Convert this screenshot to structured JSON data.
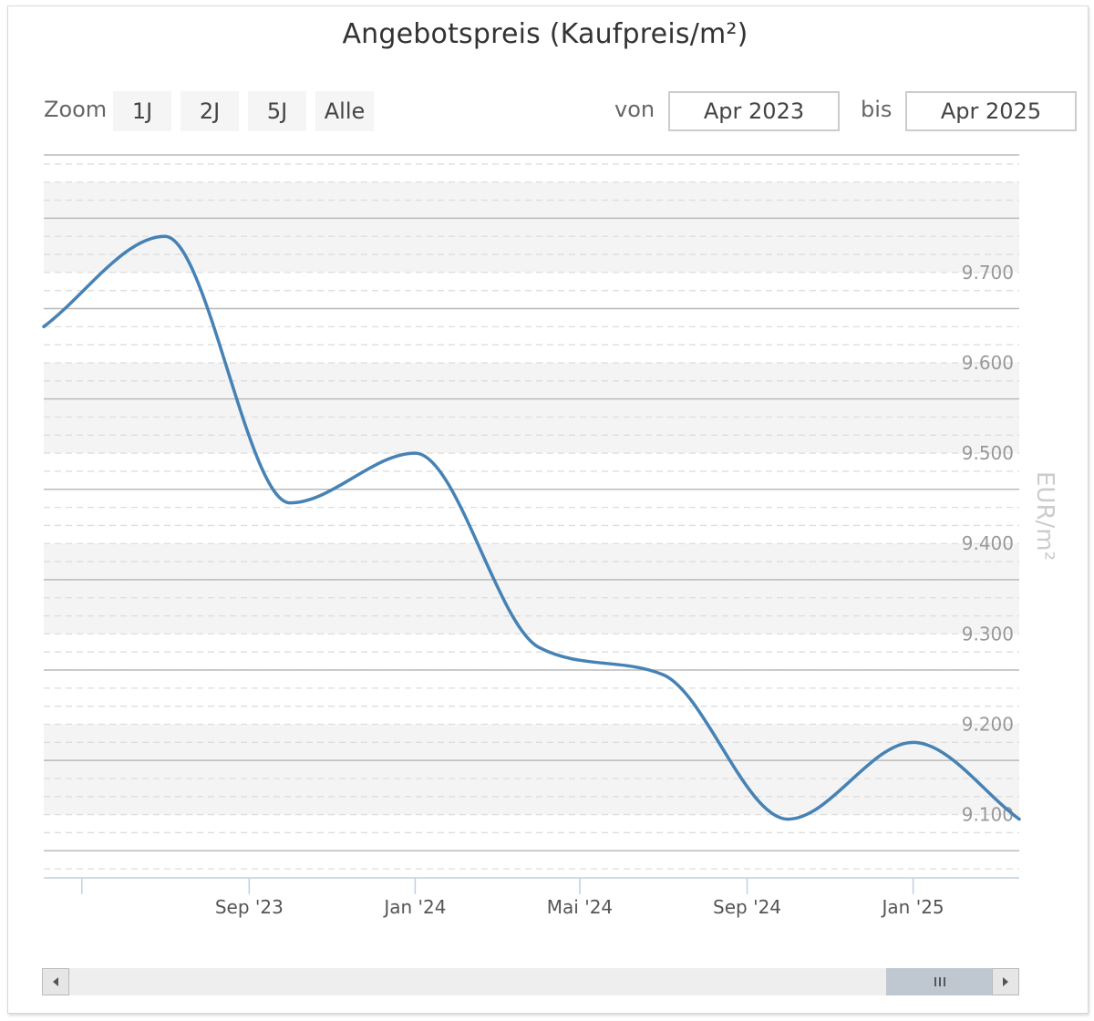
{
  "chart_data": {
    "type": "line",
    "title": "Angebotspreis (Kaufpreis/m²)",
    "ylabel": "EUR/m²",
    "xlabel": "",
    "ylim": [
      9030,
      9830
    ],
    "y_ticks": [
      9100,
      9200,
      9300,
      9400,
      9500,
      9600,
      9700
    ],
    "y_tick_labels": [
      "9.100",
      "9.200",
      "9.300",
      "9.400",
      "9.500",
      "9.600",
      "9.700"
    ],
    "x_ticks": [
      {
        "label": "",
        "date": "2023-05-01"
      },
      {
        "label": "Sep '23",
        "date": "2023-09-01"
      },
      {
        "label": "Jan '24",
        "date": "2024-01-01"
      },
      {
        "label": "Mai '24",
        "date": "2024-05-01"
      },
      {
        "label": "Sep '24",
        "date": "2024-09-01"
      },
      {
        "label": "Jan '25",
        "date": "2025-01-01"
      }
    ],
    "xlim": [
      "2023-04-03",
      "2025-03-20"
    ],
    "series": [
      {
        "color": "#4682b4",
        "x": [
          "2023-04-03",
          "2023-07-01",
          "2023-10-01",
          "2024-01-01",
          "2024-04-01",
          "2024-07-01",
          "2024-10-01",
          "2025-01-01",
          "2025-03-20"
        ],
        "values": [
          9640,
          9740,
          9445,
          9500,
          9285,
          9255,
          9095,
          9180,
          9095
        ]
      }
    ],
    "grid": true,
    "legend": "none"
  },
  "zoom": {
    "label": "Zoom",
    "buttons": [
      "1J",
      "2J",
      "5J",
      "Alle"
    ]
  },
  "range": {
    "from_label": "von",
    "from_value": "Apr 2023",
    "to_label": "bis",
    "to_value": "Apr 2025"
  },
  "scrollbar": {
    "left_icon": "triangle-left-icon",
    "right_icon": "triangle-right-icon",
    "grip_icon": "grip-lines-icon"
  }
}
